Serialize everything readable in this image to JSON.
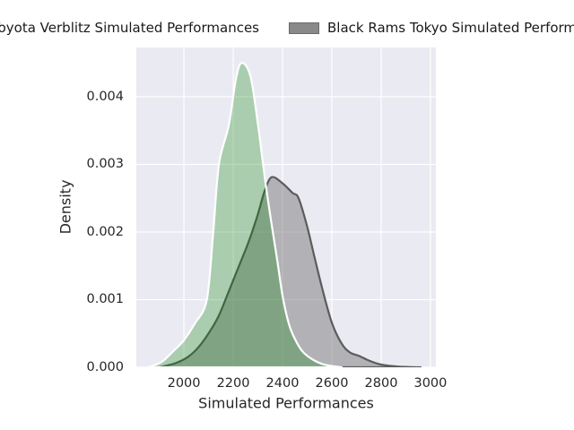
{
  "legend": {
    "items": [
      {
        "label": "Toyota Verblitz Simulated Performances",
        "swatch_color": "#6fa66f"
      },
      {
        "label": "Black Rams Tokyo Simulated Performances",
        "swatch_color": "#898989"
      }
    ]
  },
  "axes": {
    "xlabel": "Simulated Performances",
    "ylabel": "Density",
    "x_ticks": [
      2000,
      2200,
      2400,
      2600,
      2800,
      3000
    ],
    "y_ticks": [
      {
        "label": "0.000",
        "value": 0.0
      },
      {
        "label": "0.001",
        "value": 0.001
      },
      {
        "label": "0.002",
        "value": 0.002
      },
      {
        "label": "0.003",
        "value": 0.003
      },
      {
        "label": "0.004",
        "value": 0.004
      }
    ]
  },
  "chart_data": {
    "type": "area",
    "kind": "kde-density",
    "title": "",
    "xlabel": "Simulated Performances",
    "ylabel": "Density",
    "xlim": [
      1807,
      3022
    ],
    "ylim": [
      0,
      0.004728
    ],
    "grid": true,
    "legend_position": "top",
    "plot_background": "#EAEAF2",
    "series": [
      {
        "name": "Black Rams Tokyo Simulated Performances",
        "peak_x": 2356,
        "peak_density": 0.00281,
        "fill": "#808080",
        "fill_opacity": 0.53,
        "stroke": "#5c5c5c",
        "stroke_width": 2.2,
        "points": [
          [
            1900,
            0
          ],
          [
            1965,
            6e-05
          ],
          [
            2015,
            0.00015
          ],
          [
            2060,
            0.0003
          ],
          [
            2100,
            0.0005
          ],
          [
            2140,
            0.00075
          ],
          [
            2175,
            0.00106
          ],
          [
            2218,
            0.00145
          ],
          [
            2262,
            0.00185
          ],
          [
            2298,
            0.00224
          ],
          [
            2327,
            0.0026
          ],
          [
            2356,
            0.00281
          ],
          [
            2400,
            0.00272
          ],
          [
            2440,
            0.00258
          ],
          [
            2465,
            0.0025
          ],
          [
            2500,
            0.00208
          ],
          [
            2527,
            0.00167
          ],
          [
            2560,
            0.00118
          ],
          [
            2600,
            0.00066
          ],
          [
            2640,
            0.00035
          ],
          [
            2673,
            0.00022
          ],
          [
            2710,
            0.00017
          ],
          [
            2750,
            0.0001
          ],
          [
            2800,
            4e-05
          ],
          [
            2870,
            1e-05
          ],
          [
            2960,
            0
          ]
        ]
      },
      {
        "name": "Toyota Verblitz Simulated Performances",
        "peak_x": 2235,
        "peak_density": 0.0045,
        "fill": "#008000",
        "fill_opacity": 0.28,
        "stroke": "#ffffff",
        "stroke_width": 2.2,
        "points": [
          [
            1855,
            0
          ],
          [
            1910,
            8e-05
          ],
          [
            1960,
            0.00025
          ],
          [
            2000,
            0.0004
          ],
          [
            2045,
            0.00065
          ],
          [
            2093,
            0.001
          ],
          [
            2119,
            0.002
          ],
          [
            2142,
            0.003
          ],
          [
            2182,
            0.00358
          ],
          [
            2212,
            0.00428
          ],
          [
            2235,
            0.0045
          ],
          [
            2270,
            0.0043
          ],
          [
            2300,
            0.0036
          ],
          [
            2330,
            0.00275
          ],
          [
            2356,
            0.00211
          ],
          [
            2380,
            0.00155
          ],
          [
            2400,
            0.00106
          ],
          [
            2425,
            0.00065
          ],
          [
            2450,
            0.00042
          ],
          [
            2480,
            0.00024
          ],
          [
            2520,
            0.00012
          ],
          [
            2570,
            4e-05
          ],
          [
            2640,
            0
          ]
        ]
      }
    ]
  }
}
